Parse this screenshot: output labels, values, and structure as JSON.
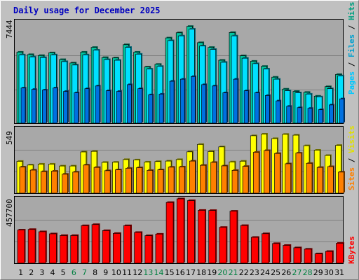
{
  "chart_data": [
    {
      "type": "bar",
      "title": "Daily usage for December 2025",
      "panel": "hits-files-pages",
      "ymax_label": "7444",
      "ylim": [
        0,
        7444
      ],
      "categories": [
        "1",
        "2",
        "3",
        "4",
        "5",
        "6",
        "7",
        "8",
        "9",
        "10",
        "11",
        "12",
        "13",
        "14",
        "15",
        "16",
        "17",
        "18",
        "19",
        "20",
        "21",
        "22",
        "23",
        "24",
        "25",
        "26",
        "27",
        "28",
        "29",
        "30",
        "31"
      ],
      "weekend_days": [
        "6",
        "7",
        "13",
        "14",
        "20",
        "21",
        "27",
        "28"
      ],
      "series": [
        {
          "name": "Hits",
          "color": "#00c8a0",
          "values": [
            5250,
            5070,
            5000,
            5200,
            4700,
            4450,
            5250,
            5600,
            4850,
            4820,
            5800,
            5250,
            4150,
            4350,
            6300,
            6680,
            7150,
            5950,
            5600,
            4650,
            6700,
            4980,
            4580,
            4200,
            3400,
            2520,
            2350,
            2280,
            2000,
            2700,
            3600
          ]
        },
        {
          "name": "Files",
          "color": "#00e0ff",
          "values": [
            5050,
            4900,
            4850,
            5050,
            4550,
            4300,
            5050,
            5400,
            4700,
            4650,
            5600,
            5100,
            4000,
            4200,
            6100,
            6450,
            6950,
            5700,
            5450,
            4500,
            6450,
            4800,
            4400,
            4000,
            3250,
            2400,
            2250,
            2150,
            1950,
            2550,
            3500
          ]
        },
        {
          "name": "Pages",
          "color": "#0070e0",
          "values": [
            2600,
            2500,
            2450,
            2600,
            2350,
            2250,
            2550,
            2750,
            2400,
            2350,
            2850,
            2550,
            2100,
            2150,
            3100,
            3250,
            3450,
            2850,
            2750,
            2250,
            3250,
            2400,
            2250,
            2050,
            1650,
            1250,
            1150,
            1100,
            1000,
            1350,
            1800
          ]
        }
      ]
    },
    {
      "type": "bar",
      "panel": "visits-sites",
      "ymax_label": "549",
      "ylim": [
        0,
        549
      ],
      "series": [
        {
          "name": "Visits",
          "color": "#ffff00",
          "values": [
            272,
            240,
            248,
            248,
            232,
            232,
            352,
            357,
            263,
            264,
            287,
            284,
            266,
            270,
            274,
            287,
            353,
            416,
            356,
            395,
            267,
            273,
            490,
            504,
            466,
            502,
            495,
            405,
            367,
            322,
            408
          ]
        },
        {
          "name": "Sites",
          "color": "#ff8000",
          "values": [
            223,
            197,
            184,
            188,
            162,
            180,
            240,
            220,
            192,
            199,
            213,
            218,
            195,
            200,
            222,
            224,
            274,
            238,
            263,
            233,
            195,
            229,
            349,
            364,
            339,
            251,
            342,
            255,
            220,
            227,
            180
          ]
        }
      ]
    },
    {
      "type": "bar",
      "panel": "kbytes",
      "ymax_label": "457700",
      "ylim": [
        0,
        457700
      ],
      "series": [
        {
          "name": "KBytes",
          "color": "#ff0000",
          "values": [
            236000,
            240000,
            224000,
            209000,
            197000,
            197000,
            267000,
            275000,
            232000,
            212000,
            267000,
            219000,
            196000,
            207000,
            432000,
            457700,
            445000,
            376000,
            375000,
            255000,
            370000,
            268000,
            184000,
            210000,
            140000,
            127000,
            110000,
            100000,
            67000,
            84000,
            142000
          ]
        }
      ]
    }
  ]
}
